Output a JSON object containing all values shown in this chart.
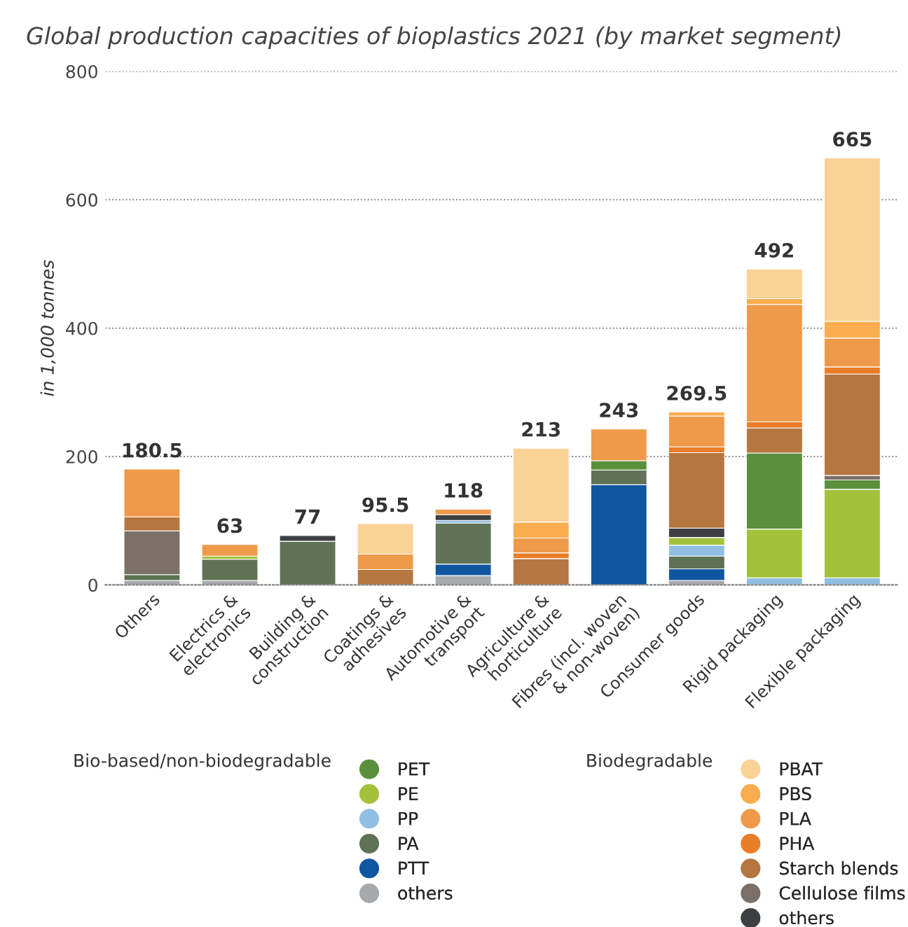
{
  "chart_data": {
    "type": "bar",
    "stacked": true,
    "title": "Global production capacities of bioplastics 2021 (by market segment)",
    "ylabel": "in 1,000 tonnes",
    "categories": [
      "Others",
      "Electrics &\nelectronics",
      "Building &\nconstruction",
      "Coatings &\nadhesives",
      "Automotive &\ntransport",
      "Agriculture &\nhorticulture",
      "Fibres (incl. woven\n& non-woven)",
      "Consumer goods",
      "Rigid packaging",
      "Flexible packaging"
    ],
    "ylim": [
      0,
      800
    ],
    "yticks": [
      0,
      200,
      400,
      600,
      800
    ],
    "grid": "y",
    "legend": "bottom",
    "legend_title": "Bio-based/non-biodegradable",
    "annotations": [
      "Biodegradable"
    ],
    "totals": [
      "180.5",
      "63",
      "77",
      "95.5",
      "118",
      "213",
      "243",
      "269.5",
      "492",
      "665"
    ],
    "series": [
      {
        "name": "others",
        "color": "#a7a9ac",
        "values": [
          7,
          7,
          null,
          null,
          14.5,
          null,
          null,
          7,
          null,
          null
        ]
      },
      {
        "name": "PTT",
        "color": "#0f56a0",
        "values": [
          null,
          null,
          null,
          null,
          18,
          null,
          156,
          18,
          null,
          null
        ]
      },
      {
        "name": "PA",
        "color": "#5f7256",
        "values": [
          9,
          33,
          68,
          null,
          64,
          null,
          23,
          20,
          null,
          null
        ]
      },
      {
        "name": "PP",
        "color": "#91bfe3",
        "values": [
          null,
          null,
          null,
          null,
          4,
          null,
          null,
          17,
          11,
          11
        ]
      },
      {
        "name": "PE",
        "color": "#a3c13b",
        "values": [
          null,
          5,
          null,
          null,
          null,
          null,
          null,
          12,
          76,
          138
        ]
      },
      {
        "name": "PET",
        "color": "#5a8f3c",
        "values": [
          null,
          null,
          null,
          null,
          null,
          null,
          14.5,
          null,
          118.5,
          14.5
        ]
      },
      {
        "name": "others",
        "color": "#3e3f43",
        "values": [
          null,
          null,
          9,
          null,
          9,
          null,
          null,
          14.5,
          null,
          null
        ]
      },
      {
        "name": "Cellulose films",
        "color": "#7a7068",
        "values": [
          68,
          null,
          null,
          null,
          null,
          null,
          null,
          null,
          null,
          7
        ]
      },
      {
        "name": "Starch blends",
        "color": "#b57640",
        "values": [
          22,
          null,
          null,
          24,
          null,
          41,
          null,
          117.5,
          39,
          158
        ]
      },
      {
        "name": "PHA",
        "color": "#e97d28",
        "values": [
          null,
          null,
          null,
          null,
          null,
          9,
          null,
          9,
          9.5,
          11
        ]
      },
      {
        "name": "PLA",
        "color": "#ef9a4a",
        "values": [
          74.5,
          18,
          null,
          24,
          8.5,
          23,
          49.5,
          48,
          183,
          45
        ]
      },
      {
        "name": "PBS",
        "color": "#f8ad4f",
        "values": [
          null,
          null,
          null,
          null,
          null,
          25,
          null,
          6.5,
          9,
          26
        ]
      },
      {
        "name": "PBAT",
        "color": "#fad295",
        "values": [
          null,
          null,
          null,
          47.5,
          null,
          115,
          null,
          null,
          46,
          254.5
        ]
      }
    ]
  }
}
